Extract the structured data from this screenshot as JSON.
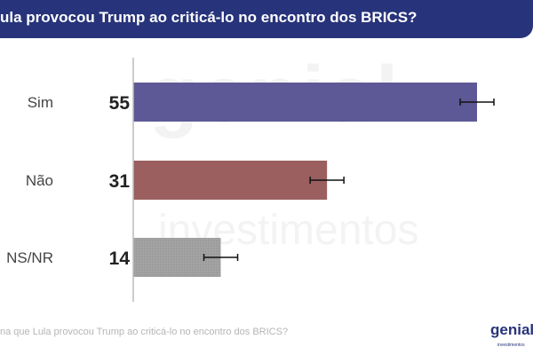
{
  "header": {
    "title": "ula provocou Trump ao criticá-lo no encontro dos BRICS?"
  },
  "watermark": {
    "line1": "genial",
    "line2": "investimentos"
  },
  "footer": {
    "text": "na que Lula provocou Trump ao criticá-lo no encontro dos BRICS?",
    "logo": "genial",
    "logo_sub": "investimentos"
  },
  "chart_data": {
    "type": "bar",
    "orientation": "horizontal",
    "categories": [
      "Sim",
      "Não",
      "NS/NR"
    ],
    "values": [
      55,
      31,
      14
    ],
    "error": [
      2.7,
      2.7,
      2.7
    ],
    "colors": [
      "#5d5996",
      "#9b5f5f",
      "#a3a3a3"
    ],
    "xlim": [
      0,
      65
    ],
    "grid": false
  }
}
